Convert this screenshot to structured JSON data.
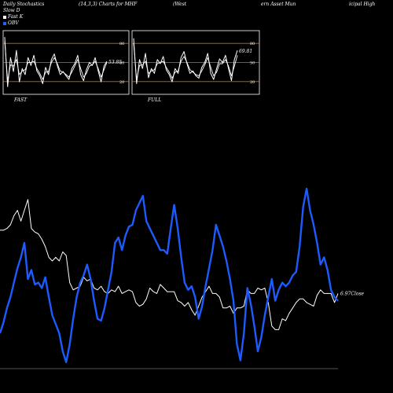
{
  "header": {
    "title_1": "Daily Stochastics",
    "title_2": "(14,3,3) Charts for MHF",
    "title_3": "(West",
    "title_4": "ern Asset Mun",
    "title_5": "icipal High"
  },
  "legend": {
    "items": [
      {
        "label": "Slow D",
        "color": null
      },
      {
        "label": "Fast K",
        "color": "#ffffff"
      },
      {
        "label": "OBV",
        "color": "#2060ff"
      }
    ]
  },
  "colors": {
    "background": "#000000",
    "close_line": "#ffffff",
    "obv_line": "#1e5bff",
    "panel_border": "#ffffff",
    "ref_line": "#b07a16",
    "baseline": "#555555"
  },
  "chart_data": [
    {
      "type": "line",
      "title": "FAST",
      "y_ticks": [
        80,
        50,
        20
      ],
      "ylim": [
        0,
        100
      ],
      "value_label": "53.85",
      "series": [
        {
          "values": [
            92,
            10,
            58,
            35,
            70,
            18,
            40,
            30,
            58,
            45,
            62,
            36,
            28,
            15,
            42,
            30,
            55,
            64,
            45,
            30,
            35,
            28,
            22,
            40,
            48,
            62,
            30,
            20,
            38,
            50,
            45,
            58,
            36,
            18,
            44,
            52
          ]
        },
        {
          "values": [
            85,
            20,
            46,
            44,
            55,
            30,
            36,
            38,
            50,
            50,
            52,
            40,
            32,
            22,
            34,
            35,
            50,
            58,
            48,
            36,
            34,
            30,
            26,
            34,
            44,
            55,
            40,
            26,
            32,
            44,
            46,
            52,
            40,
            26,
            38,
            50
          ]
        }
      ]
    },
    {
      "type": "line",
      "title": "FULL",
      "y_ticks": [
        80,
        50,
        20
      ],
      "ylim": [
        0,
        100
      ],
      "value_label": "69.81",
      "series": [
        {
          "values": [
            90,
            15,
            55,
            40,
            65,
            25,
            40,
            32,
            55,
            48,
            60,
            38,
            30,
            18,
            40,
            32,
            58,
            68,
            48,
            32,
            36,
            28,
            24,
            42,
            50,
            65,
            32,
            22,
            40,
            56,
            50,
            62,
            40,
            20,
            55,
            70
          ]
        },
        {
          "values": [
            82,
            22,
            45,
            46,
            52,
            32,
            36,
            38,
            48,
            50,
            52,
            42,
            34,
            24,
            34,
            36,
            52,
            60,
            50,
            38,
            34,
            30,
            28,
            36,
            46,
            58,
            42,
            28,
            34,
            48,
            48,
            55,
            44,
            28,
            44,
            62
          ]
        }
      ]
    },
    {
      "type": "line",
      "ylim": [
        0,
        100
      ],
      "value_label": "6.97",
      "value_label_suffix": "Close",
      "series": [
        {
          "name": "Close",
          "values": [
            77,
            77,
            78,
            80,
            85,
            88,
            82,
            88,
            94,
            78,
            76,
            75,
            72,
            68,
            62,
            60,
            62,
            60,
            65,
            63,
            48,
            44,
            45,
            46,
            51,
            49,
            50,
            45,
            44,
            46,
            43,
            42,
            44,
            43,
            46,
            42,
            43,
            44,
            43,
            37,
            35,
            36,
            39,
            45,
            43,
            42,
            47,
            45,
            43,
            43,
            43,
            38,
            37,
            35,
            37,
            33,
            30,
            35,
            40,
            43,
            46,
            42,
            42,
            40,
            34,
            34,
            35,
            31,
            34,
            34,
            35,
            44,
            42,
            42,
            45,
            44,
            45,
            37,
            24,
            22,
            22,
            28,
            27,
            31,
            34,
            37,
            39,
            39,
            37,
            36,
            35,
            41,
            44,
            42,
            42,
            42,
            37,
            42
          ]
        },
        {
          "name": "OBV",
          "values": [
            20,
            26,
            34,
            40,
            48,
            56,
            62,
            70,
            50,
            55,
            47,
            48,
            45,
            51,
            40,
            30,
            25,
            20,
            10,
            4,
            14,
            28,
            40,
            48,
            52,
            58,
            50,
            38,
            28,
            27,
            34,
            44,
            54,
            70,
            73,
            66,
            74,
            79,
            80,
            88,
            92,
            96,
            82,
            78,
            74,
            70,
            66,
            66,
            64,
            78,
            91,
            78,
            62,
            48,
            44,
            46,
            40,
            28,
            35,
            46,
            56,
            66,
            80,
            74,
            68,
            60,
            50,
            38,
            14,
            5,
            20,
            45,
            36,
            24,
            10,
            18,
            30,
            40,
            50,
            38,
            44,
            48,
            46,
            48,
            52,
            54,
            68,
            90,
            100,
            88,
            80,
            70,
            58,
            62,
            55,
            44,
            40,
            38
          ]
        }
      ]
    }
  ]
}
